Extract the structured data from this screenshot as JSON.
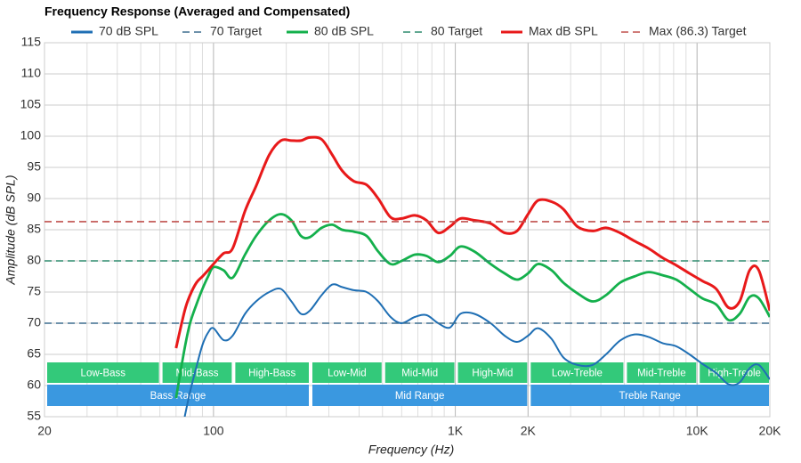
{
  "chart_data": {
    "type": "line",
    "title": "Frequency Response (Averaged and Compensated)",
    "xlabel": "Frequency (Hz)",
    "ylabel": "Amplitude (dB SPL)",
    "xscale": "log",
    "grid": true,
    "legend": "top",
    "xlim": [
      20,
      20000
    ],
    "ylim": [
      55,
      115
    ],
    "xticks": [
      20,
      100,
      {
        "value": 1000,
        "label": "1K"
      },
      {
        "value": 2000,
        "label": "2K"
      },
      {
        "value": 10000,
        "label": "10K"
      },
      {
        "value": 20000,
        "label": "20K"
      }
    ],
    "yticks": [
      55,
      60,
      65,
      70,
      75,
      80,
      85,
      90,
      95,
      100,
      105,
      110,
      115
    ],
    "x": [
      70,
      76,
      80,
      85,
      90,
      95,
      100,
      110,
      120,
      135,
      150,
      170,
      190,
      210,
      230,
      250,
      280,
      310,
      340,
      380,
      430,
      480,
      540,
      600,
      680,
      760,
      850,
      950,
      1050,
      1200,
      1400,
      1600,
      1800,
      2000,
      2200,
      2500,
      2800,
      3200,
      3700,
      4200,
      4800,
      5500,
      6300,
      7200,
      8200,
      9300,
      10500,
      12000,
      13500,
      15000,
      16500,
      18000,
      20000
    ],
    "series": [
      {
        "name": "70 dB SPL",
        "color": "#1f6fb4",
        "values": [
          null,
          55,
          59,
          63,
          66.5,
          68.5,
          69.2,
          67.3,
          68,
          71.5,
          73.5,
          75,
          75.5,
          73.5,
          71.5,
          72,
          74.5,
          76.2,
          75.8,
          75.3,
          75,
          73.5,
          71,
          70,
          71,
          71.3,
          70,
          69.3,
          71.5,
          71.5,
          70,
          68,
          67,
          68,
          69.2,
          67.5,
          64.5,
          63.3,
          63.3,
          65,
          67.2,
          68.2,
          67.8,
          66.8,
          66.3,
          65,
          63.5,
          62,
          60.2,
          60.5,
          62.8,
          63.3,
          61
        ]
      },
      {
        "name": "70 Target",
        "color": "#3f6f8f",
        "style": "dashed",
        "value": 70
      },
      {
        "name": "80 dB SPL",
        "color": "#14b04c",
        "values": [
          58,
          66,
          70,
          73,
          75.5,
          77.5,
          79,
          78.5,
          77.3,
          81,
          84,
          86.5,
          87.5,
          86.5,
          84,
          83.8,
          85.3,
          85.8,
          85,
          84.7,
          84,
          81.5,
          79.5,
          80,
          81,
          80.8,
          79.8,
          80.8,
          82.3,
          81.5,
          79.5,
          78,
          77,
          78,
          79.5,
          78.5,
          76.5,
          74.8,
          73.5,
          74.5,
          76.5,
          77.5,
          78.2,
          77.7,
          77,
          75.5,
          74,
          73,
          70.5,
          71.5,
          74.2,
          74,
          71
        ]
      },
      {
        "name": "80 Target",
        "color": "#2e8b6e",
        "style": "dashed",
        "value": 80
      },
      {
        "name": "Max dB SPL",
        "color": "#e8191a",
        "values": [
          66,
          72,
          74.5,
          76.5,
          77.5,
          78.5,
          79.5,
          81.2,
          82,
          88,
          92,
          97,
          99.3,
          99.3,
          99.3,
          99.8,
          99.5,
          97,
          94.5,
          92.8,
          92.2,
          90,
          87,
          86.8,
          87.3,
          86.5,
          84.5,
          85.5,
          86.8,
          86.5,
          86,
          84.5,
          84.8,
          87.5,
          89.7,
          89.5,
          88.3,
          85.5,
          84.8,
          85.3,
          84.5,
          83.2,
          82,
          80.5,
          79.3,
          78,
          76.8,
          75.5,
          72.5,
          73.5,
          78.5,
          78.5,
          72
        ]
      },
      {
        "name": "Max (86.3) Target",
        "color": "#c0504d",
        "style": "dashed",
        "value": 86.3
      }
    ],
    "bands": [
      [
        {
          "label": "Low-Bass",
          "from": 20,
          "to": 60,
          "color": "#33c97a"
        },
        {
          "label": "Mid-Bass",
          "from": 60,
          "to": 120,
          "color": "#33c97a"
        },
        {
          "label": "High-Bass",
          "from": 120,
          "to": 250,
          "color": "#33c97a"
        },
        {
          "label": "Low-Mid",
          "from": 250,
          "to": 500,
          "color": "#33c97a"
        },
        {
          "label": "Mid-Mid",
          "from": 500,
          "to": 1000,
          "color": "#33c97a"
        },
        {
          "label": "High-Mid",
          "from": 1000,
          "to": 2000,
          "color": "#33c97a"
        },
        {
          "label": "Low-Treble",
          "from": 2000,
          "to": 5000,
          "color": "#33c97a"
        },
        {
          "label": "Mid-Treble",
          "from": 5000,
          "to": 10000,
          "color": "#33c97a"
        },
        {
          "label": "High-Treble",
          "from": 10000,
          "to": 20000,
          "color": "#33c97a"
        }
      ],
      [
        {
          "label": "Bass Range",
          "from": 20,
          "to": 250,
          "color": "#3a98e0"
        },
        {
          "label": "Mid Range",
          "from": 250,
          "to": 2000,
          "color": "#3a98e0"
        },
        {
          "label": "Treble Range",
          "from": 2000,
          "to": 20000,
          "color": "#3a98e0"
        }
      ]
    ]
  }
}
